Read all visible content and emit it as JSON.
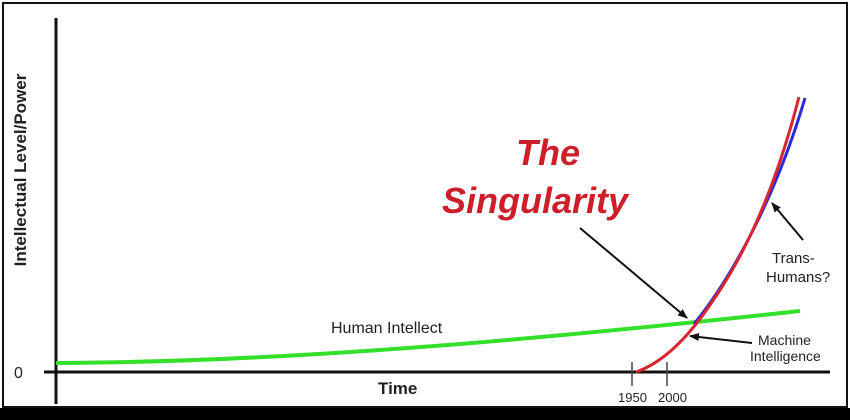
{
  "title": {
    "line1": "The",
    "line2": "Singularity",
    "color": "#cc1f2a"
  },
  "axes": {
    "ylabel": "Intellectual Level/Power",
    "xlabel": "Time",
    "origin_label": "0",
    "ticks": [
      "1950",
      "2000"
    ]
  },
  "curves": [
    {
      "id": "human",
      "label": "Human Intellect",
      "color": "#33e02a"
    },
    {
      "id": "machine",
      "label_line1": "Machine",
      "label_line2": "Intelligence",
      "color": "#d8262e"
    },
    {
      "id": "transhuman",
      "label_line1": "Trans-",
      "label_line2": "Humans?",
      "color": "#2a2ad6"
    }
  ]
}
